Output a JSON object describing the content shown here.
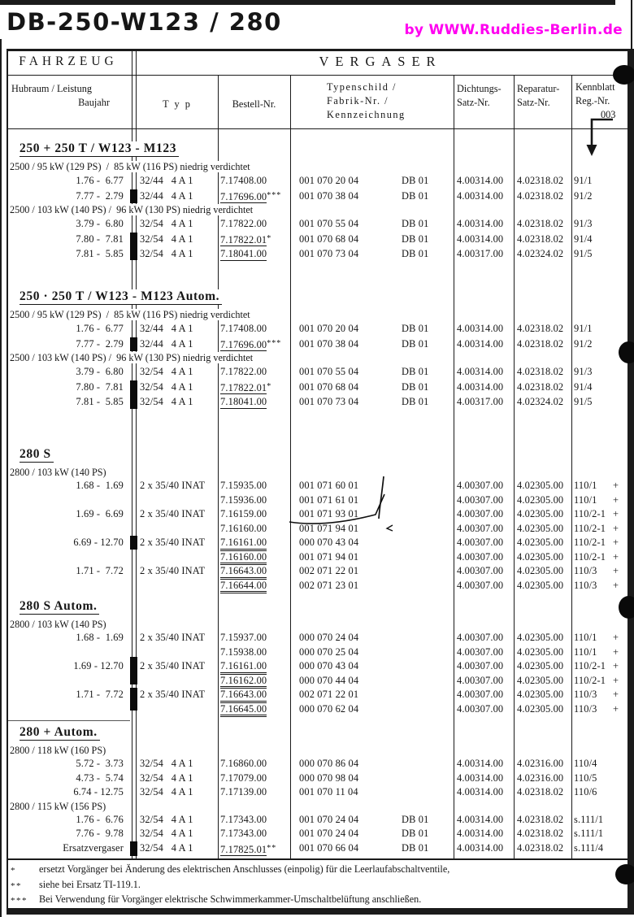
{
  "page": {
    "title": "DB-250-W123 / 280",
    "watermark": "by  WWW.Ruddies-Berlin.de"
  },
  "colors": {
    "watermark": "#ff00f0",
    "ink": "#161616"
  },
  "table": {
    "header": {
      "fahrzeug": "FAHRZEUG",
      "vergaser": "VERGASER",
      "col_fahrzeug_line1": "Hubraum / Leistung",
      "col_fahrzeug_line2": "Baujahr",
      "col_typ": "T y p",
      "col_bestell": "Bestell-Nr.",
      "col_typenschild": [
        "Typenschild /",
        "Fabrik-Nr. /",
        "Kennzeichnung"
      ],
      "col_dichtungs": [
        "Dichtungs-",
        "Satz-Nr."
      ],
      "col_reparatur": [
        "Reparatur-",
        "Satz-Nr."
      ],
      "col_kennblatt": [
        "Kennblatt",
        "Reg.-Nr."
      ],
      "kennblatt_ref": "003"
    },
    "sections": [
      {
        "title": "250 + 250 T / W123 - M123",
        "groups": [
          {
            "label": "2500 / 95 kW (129 PS)  /  85 kW (116 PS) niedrig verdichtet",
            "rows": [
              {
                "baujahr": "1.76 -  6.77",
                "typ": "32/44   4 A 1",
                "bestell": "7.17408.00",
                "u": 0,
                "stars": "",
                "fabrik": "001 070 20 04",
                "db": "DB 01",
                "dicht": "4.00314.00",
                "rep": "4.02318.02",
                "kenn": "91/1",
                "plus": ""
              },
              {
                "baujahr": "7.77 -  2.79",
                "typ": "32/44   4 A 1",
                "bestell": "7.17696.00",
                "u": 1,
                "stars": "***",
                "fabrik": "001 070 38 04",
                "db": "DB 01",
                "dicht": "4.00314.00",
                "rep": "4.02318.02",
                "kenn": "91/2",
                "plus": ""
              }
            ]
          },
          {
            "label": "2500 / 103 kW (140 PS) /  96 kW (130 PS) niedrig verdichtet",
            "rows": [
              {
                "baujahr": "3.79 -  6.80",
                "typ": "32/54   4 A 1",
                "bestell": "7.17822.00",
                "u": 0,
                "stars": "",
                "fabrik": "001 070 55 04",
                "db": "DB 01",
                "dicht": "4.00314.00",
                "rep": "4.02318.02",
                "kenn": "91/3",
                "plus": ""
              },
              {
                "baujahr": "7.80 -  7.81",
                "typ": "32/54   4 A 1",
                "bestell": "7.17822.01",
                "u": 1,
                "stars": "*",
                "fabrik": "001 070 68 04",
                "db": "DB 01",
                "dicht": "4.00314.00",
                "rep": "4.02318.02",
                "kenn": "91/4",
                "plus": ""
              },
              {
                "baujahr": "7.81 -  5.85",
                "typ": "32/54   4 A 1",
                "bestell": "7.18041.00",
                "u": 1,
                "stars": "",
                "fabrik": "001 070 73 04",
                "db": "DB 01",
                "dicht": "4.00317.00",
                "rep": "4.02324.02",
                "kenn": "91/5",
                "plus": ""
              }
            ]
          }
        ]
      },
      {
        "title": "250 · 250 T / W123 - M123 Autom.",
        "groups": [
          {
            "label": "2500 / 95 kW (129 PS)  /  85 kW (116 PS) niedrig verdichtet",
            "rows": [
              {
                "baujahr": "1.76 -  6.77",
                "typ": "32/44   4 A 1",
                "bestell": "7.17408.00",
                "u": 0,
                "stars": "",
                "fabrik": "001 070 20 04",
                "db": "DB 01",
                "dicht": "4.00314.00",
                "rep": "4.02318.02",
                "kenn": "91/1",
                "plus": ""
              },
              {
                "baujahr": "7.77 -  2.79",
                "typ": "32/44   4 A 1",
                "bestell": "7.17696.00",
                "u": 1,
                "stars": "***",
                "fabrik": "001 070 38 04",
                "db": "DB 01",
                "dicht": "4.00314.00",
                "rep": "4.02318.02",
                "kenn": "91/2",
                "plus": ""
              }
            ]
          },
          {
            "label": "2500 / 103 kW (140 PS) /  96 kW (130 PS) niedrig verdichtet",
            "rows": [
              {
                "baujahr": "3.79 -  6.80",
                "typ": "32/54   4 A 1",
                "bestell": "7.17822.00",
                "u": 0,
                "stars": "",
                "fabrik": "001 070 55 04",
                "db": "DB 01",
                "dicht": "4.00314.00",
                "rep": "4.02318.02",
                "kenn": "91/3",
                "plus": ""
              },
              {
                "baujahr": "7.80 -  7.81",
                "typ": "32/54   4 A 1",
                "bestell": "7.17822.01",
                "u": 1,
                "stars": "*",
                "fabrik": "001 070 68 04",
                "db": "DB 01",
                "dicht": "4.00314.00",
                "rep": "4.02318.02",
                "kenn": "91/4",
                "plus": ""
              },
              {
                "baujahr": "7.81 -  5.85",
                "typ": "32/54   4 A 1",
                "bestell": "7.18041.00",
                "u": 1,
                "stars": "",
                "fabrik": "001 070 73 04",
                "db": "DB 01",
                "dicht": "4.00317.00",
                "rep": "4.02324.02",
                "kenn": "91/5",
                "plus": ""
              }
            ]
          }
        ]
      },
      {
        "title": "280 S",
        "groups": [
          {
            "label": "2800 / 103 kW (140 PS)",
            "rows": [
              {
                "baujahr": "1.68 -  1.69",
                "typ": "2 x 35/40 INAT",
                "bestell": "7.15935.00",
                "u": 0,
                "stars": "",
                "fabrik": "001 071 60 01",
                "db": "",
                "dicht": "4.00307.00",
                "rep": "4.02305.00",
                "kenn": "110/1",
                "plus": "+"
              },
              {
                "baujahr": "",
                "typ": "",
                "bestell": "7.15936.00",
                "u": 0,
                "stars": "",
                "fabrik": "001 071 61 01",
                "db": "",
                "dicht": "4.00307.00",
                "rep": "4.02305.00",
                "kenn": "110/1",
                "plus": "+"
              },
              {
                "baujahr": "1.69 -  6.69",
                "typ": "2 x 35/40 INAT",
                "bestell": "7.16159.00",
                "u": 0,
                "stars": "",
                "fabrik": "001 071 93 01",
                "db": "",
                "dicht": "4.00307.00",
                "rep": "4.02305.00",
                "kenn": "110/2-1",
                "plus": "+"
              },
              {
                "baujahr": "",
                "typ": "",
                "bestell": "7.16160.00",
                "u": 0,
                "stars": "",
                "fabrik": "001 071 94 01",
                "db": "",
                "dicht": "4.00307.00",
                "rep": "4.02305.00",
                "kenn": "110/2-1",
                "plus": "+"
              },
              {
                "baujahr": "6.69 - 12.70",
                "typ": "2 x 35/40 INAT",
                "bestell": "7.16161.00",
                "u": 2,
                "stars": "",
                "fabrik": "000 070 43 04",
                "db": "",
                "dicht": "4.00307.00",
                "rep": "4.02305.00",
                "kenn": "110/2-1",
                "plus": "+"
              },
              {
                "baujahr": "",
                "typ": "",
                "bestell": "7.16160.00",
                "u": 2,
                "stars": "",
                "fabrik": "001 071 94 01",
                "db": "",
                "dicht": "4.00307.00",
                "rep": "4.02305.00",
                "kenn": "110/2-1",
                "plus": "+"
              },
              {
                "baujahr": "1.71 -  7.72",
                "typ": "2 x 35/40 INAT",
                "bestell": "7.16643.00",
                "u": 2,
                "stars": "",
                "fabrik": "002 071 22 01",
                "db": "",
                "dicht": "4.00307.00",
                "rep": "4.02305.00",
                "kenn": "110/3",
                "plus": "+"
              },
              {
                "baujahr": "",
                "typ": "",
                "bestell": "7.16644.00",
                "u": 2,
                "stars": "",
                "fabrik": "002 071 23 01",
                "db": "",
                "dicht": "4.00307.00",
                "rep": "4.02305.00",
                "kenn": "110/3",
                "plus": "+"
              }
            ]
          }
        ]
      },
      {
        "title": "280 S Autom.",
        "groups": [
          {
            "label": "2800 / 103 kW (140 PS)",
            "rows": [
              {
                "baujahr": "1.68 -  1.69",
                "typ": "2 x 35/40 INAT",
                "bestell": "7.15937.00",
                "u": 0,
                "stars": "",
                "fabrik": "000 070 24 04",
                "db": "",
                "dicht": "4.00307.00",
                "rep": "4.02305.00",
                "kenn": "110/1",
                "plus": "+"
              },
              {
                "baujahr": "",
                "typ": "",
                "bestell": "7.15938.00",
                "u": 0,
                "stars": "",
                "fabrik": "000 070 25 04",
                "db": "",
                "dicht": "4.00307.00",
                "rep": "4.02305.00",
                "kenn": "110/1",
                "plus": "+"
              },
              {
                "baujahr": "1.69 - 12.70",
                "typ": "2 x 35/40 INAT",
                "bestell": "7.16161.00",
                "u": 2,
                "stars": "",
                "fabrik": "000 070 43 04",
                "db": "",
                "dicht": "4.00307.00",
                "rep": "4.02305.00",
                "kenn": "110/2-1",
                "plus": "+"
              },
              {
                "baujahr": "",
                "typ": "",
                "bestell": "7.16162.00",
                "u": 2,
                "stars": "",
                "fabrik": "000 070 44 04",
                "db": "",
                "dicht": "4.00307.00",
                "rep": "4.02305.00",
                "kenn": "110/2-1",
                "plus": "+"
              },
              {
                "baujahr": "1.71 -  7.72",
                "typ": "2 x 35/40 INAT",
                "bestell": "7.16643.00",
                "u": 2,
                "stars": "",
                "fabrik": "002 071 22 01",
                "db": "",
                "dicht": "4.00307.00",
                "rep": "4.02305.00",
                "kenn": "110/3",
                "plus": "+"
              },
              {
                "baujahr": "",
                "typ": "",
                "bestell": "7.16645.00",
                "u": 2,
                "stars": "",
                "fabrik": "000 070 62 04",
                "db": "",
                "dicht": "4.00307.00",
                "rep": "4.02305.00",
                "kenn": "110/3",
                "plus": "+"
              }
            ]
          }
        ]
      },
      {
        "title": "280 + Autom.",
        "groups": [
          {
            "label": "2800 / 118 kW (160 PS)",
            "rows": [
              {
                "baujahr": "5.72 -  3.73",
                "typ": "32/54   4 A 1",
                "bestell": "7.16860.00",
                "u": 0,
                "stars": "",
                "fabrik": "000 070 86 04",
                "db": "",
                "dicht": "4.00314.00",
                "rep": "4.02316.00",
                "kenn": "110/4",
                "plus": ""
              },
              {
                "baujahr": "4.73 -  5.74",
                "typ": "32/54   4 A 1",
                "bestell": "7.17079.00",
                "u": 0,
                "stars": "",
                "fabrik": "000 070 98 04",
                "db": "",
                "dicht": "4.00314.00",
                "rep": "4.02316.00",
                "kenn": "110/5",
                "plus": ""
              },
              {
                "baujahr": "6.74 - 12.75",
                "typ": "32/54   4 A 1",
                "bestell": "7.17139.00",
                "u": 0,
                "stars": "",
                "fabrik": "001 070 11 04",
                "db": "",
                "dicht": "4.00314.00",
                "rep": "4.02318.02",
                "kenn": "110/6",
                "plus": ""
              }
            ]
          },
          {
            "label": "2800 / 115 kW (156 PS)",
            "rows": [
              {
                "baujahr": "1.76 -  6.76",
                "typ": "32/54   4 A 1",
                "bestell": "7.17343.00",
                "u": 0,
                "stars": "",
                "fabrik": "001 070 24 04",
                "db": "DB 01",
                "dicht": "4.00314.00",
                "rep": "4.02318.02",
                "kenn": "s.111/1",
                "plus": ""
              },
              {
                "baujahr": "7.76 -  9.78",
                "typ": "32/54   4 A 1",
                "bestell": "7.17343.00",
                "u": 0,
                "stars": "",
                "fabrik": "001 070 24 04",
                "db": "DB 01",
                "dicht": "4.00314.00",
                "rep": "4.02318.02",
                "kenn": "s.111/1",
                "plus": ""
              },
              {
                "baujahr": "Ersatzvergaser",
                "typ": "32/54   4 A 1",
                "bestell": "7.17825.01",
                "u": 1,
                "stars": "**",
                "fabrik": "001 070 66 04",
                "db": "DB 01",
                "dicht": "4.00314.00",
                "rep": "4.02318.02",
                "kenn": "s.111/4",
                "plus": ""
              }
            ]
          }
        ]
      }
    ]
  },
  "footnotes": [
    {
      "marker": "*",
      "text": "ersetzt Vorgänger bei Änderung des elektrischen Anschlusses (einpolig) für die Leerlaufabschaltventile,"
    },
    {
      "marker": "**",
      "text": "siehe bei Ersatz TI-119.1."
    },
    {
      "marker": "***",
      "text": "Bei Verwendung für Vorgänger elektrische Schwimmerkammer-Umschaltbelüftung anschließen."
    }
  ]
}
